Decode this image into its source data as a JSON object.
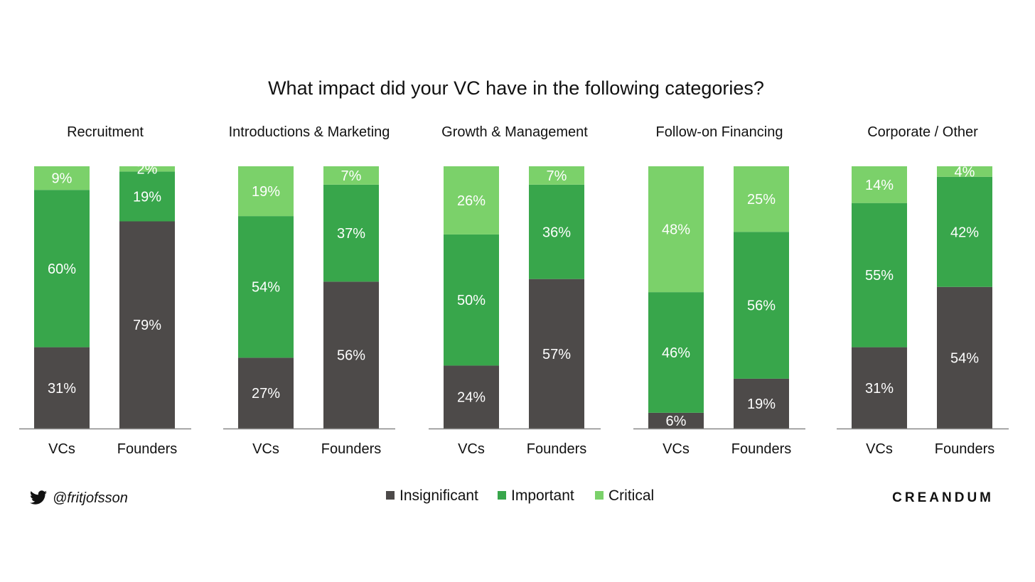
{
  "colors": {
    "Insignificant": "#4d4a49",
    "Important": "#38a64b",
    "Critical": "#7bd16a",
    "axis": "#888888",
    "label": "#ffffff"
  },
  "footer": {
    "handle": "@fritjofsson",
    "handle_icon": "twitter-bird-icon",
    "brand": "CREANDUM"
  },
  "chart_data": {
    "type": "bar",
    "stacked": true,
    "normalized": true,
    "title": "What impact did your VC have in the following categories?",
    "legend": [
      "Insignificant",
      "Important",
      "Critical"
    ],
    "legend_position": "bottom",
    "grid": false,
    "ylim": [
      0,
      100
    ],
    "unit": "%",
    "panels": [
      {
        "title": "Recruitment",
        "categories": [
          "VCs",
          "Founders"
        ],
        "series": [
          {
            "name": "Insignificant",
            "values": [
              31,
              79
            ]
          },
          {
            "name": "Important",
            "values": [
              60,
              19
            ]
          },
          {
            "name": "Critical",
            "values": [
              9,
              2
            ]
          }
        ]
      },
      {
        "title": "Introductions & Marketing",
        "categories": [
          "VCs",
          "Founders"
        ],
        "series": [
          {
            "name": "Insignificant",
            "values": [
              27,
              56
            ]
          },
          {
            "name": "Important",
            "values": [
              54,
              37
            ]
          },
          {
            "name": "Critical",
            "values": [
              19,
              7
            ]
          }
        ]
      },
      {
        "title": "Growth & Management",
        "categories": [
          "VCs",
          "Founders"
        ],
        "series": [
          {
            "name": "Insignificant",
            "values": [
              24,
              57
            ]
          },
          {
            "name": "Important",
            "values": [
              50,
              36
            ]
          },
          {
            "name": "Critical",
            "values": [
              26,
              7
            ]
          }
        ]
      },
      {
        "title": "Follow-on Financing",
        "categories": [
          "VCs",
          "Founders"
        ],
        "series": [
          {
            "name": "Insignificant",
            "values": [
              6,
              19
            ]
          },
          {
            "name": "Important",
            "values": [
              46,
              56
            ]
          },
          {
            "name": "Critical",
            "values": [
              48,
              25
            ]
          }
        ]
      },
      {
        "title": "Corporate / Other",
        "categories": [
          "VCs",
          "Founders"
        ],
        "series": [
          {
            "name": "Insignificant",
            "values": [
              31,
              54
            ]
          },
          {
            "name": "Important",
            "values": [
              55,
              42
            ]
          },
          {
            "name": "Critical",
            "values": [
              14,
              4
            ]
          }
        ]
      }
    ]
  }
}
